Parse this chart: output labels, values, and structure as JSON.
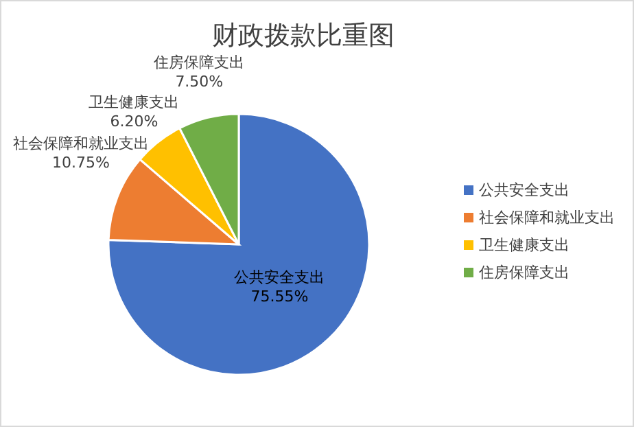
{
  "chart_data": {
    "type": "pie",
    "title": "财政拨款比重图",
    "categories": [
      "公共安全支出",
      "社会保障和就业支出",
      "卫生健康支出",
      "住房保障支出"
    ],
    "values": [
      75.55,
      10.75,
      6.2,
      7.5
    ],
    "value_labels": [
      "75.55%",
      "10.75%",
      "6.20%",
      "7.50%"
    ],
    "colors": [
      "#4472c4",
      "#ed7d31",
      "#ffc000",
      "#70ad47"
    ],
    "legend": "right"
  }
}
